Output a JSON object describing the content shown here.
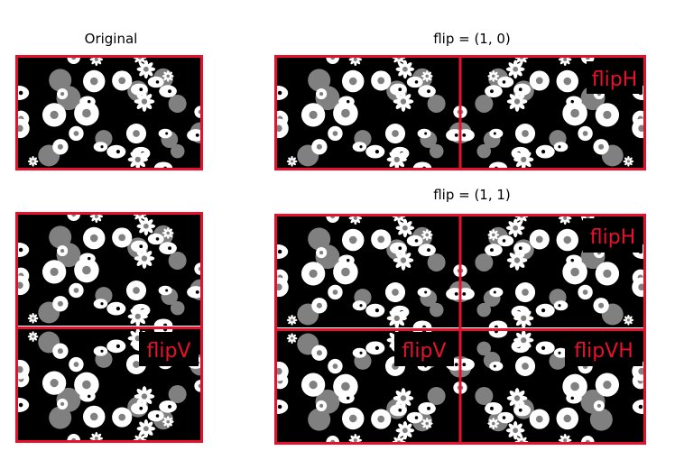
{
  "panels": {
    "original": {
      "title": "Original"
    },
    "flip_h": {
      "title": "flip = (1, 0)",
      "labels": [
        "flipH"
      ]
    },
    "flip_v": {
      "title": "",
      "labels": [
        "flipV"
      ]
    },
    "flip_hv": {
      "title": "flip = (1, 1)",
      "labels": [
        "flipH",
        "flipV",
        "flipVH"
      ]
    }
  },
  "colors": {
    "border": "#e8112d",
    "label_text": "#e8112d",
    "label_bg": "#000000",
    "image_bg": "#000000",
    "flower_white": "#ffffff",
    "blob_gray": "#808080"
  }
}
